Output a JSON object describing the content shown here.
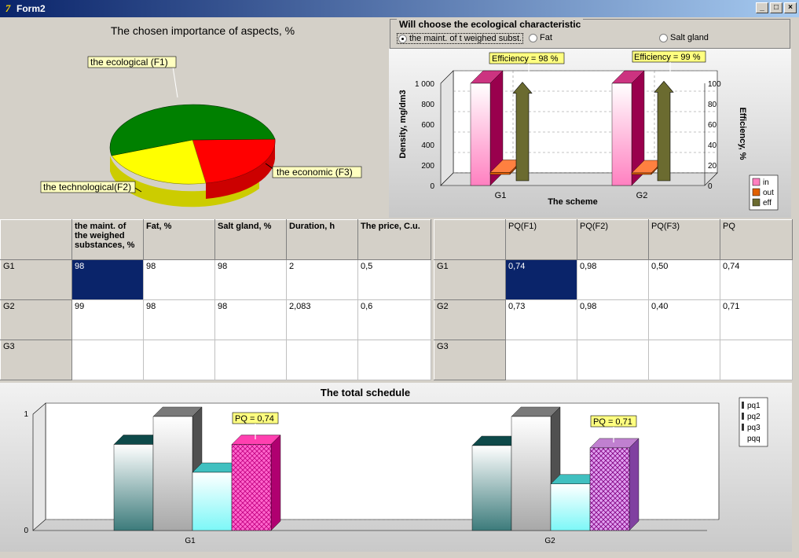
{
  "window": {
    "title": "Form2",
    "icon": "delphi-app-icon",
    "minimize": "_",
    "maximize": "□",
    "close": "×"
  },
  "pie_chart": {
    "title": "The chosen importance of aspects, %",
    "slices": [
      {
        "label": "the ecological  (F1)",
        "value": 50,
        "color": "#008000"
      },
      {
        "label": "the economic  (F3)",
        "value": 25,
        "color": "#ff0000"
      },
      {
        "label": "the technological(F2)",
        "value": 25,
        "color": "#ffff00"
      }
    ]
  },
  "eco_group": {
    "title": "Will choose the ecological characteristic",
    "options": [
      {
        "label": "the maint. of t weighed subst.",
        "selected": true
      },
      {
        "label": "Fat",
        "selected": false
      },
      {
        "label": "Salt gland",
        "selected": false
      }
    ]
  },
  "scheme_chart": {
    "ylabel": "Density, mg/dm3",
    "y2label": "Efficiency, %",
    "xlabel": "The scheme",
    "yticks": [
      "1 000",
      "800",
      "600",
      "400",
      "200",
      "0"
    ],
    "y2ticks": [
      "100",
      "80",
      "60",
      "40",
      "20",
      "0"
    ],
    "categories": [
      "G1",
      "G2"
    ],
    "legend": [
      "in",
      "out",
      "eff"
    ],
    "annotations": [
      "Efficiency = 98 %",
      "Efficiency = 99 %"
    ]
  },
  "table_left": {
    "headers": [
      "the maint. of the weighed substances, %",
      "Fat, %",
      "Salt gland, %",
      "Duration, h",
      "The price, C.u."
    ],
    "rows": [
      {
        "label": "G1",
        "cells": [
          "98",
          "98",
          "98",
          "2",
          "0,5"
        ]
      },
      {
        "label": "G2",
        "cells": [
          "99",
          "98",
          "98",
          "2,083",
          "0,6"
        ]
      },
      {
        "label": "G3",
        "cells": [
          "",
          "",
          "",
          "",
          ""
        ]
      }
    ]
  },
  "table_right": {
    "headers": [
      "PQ(F1)",
      "PQ(F2)",
      "PQ(F3)",
      "PQ"
    ],
    "rows": [
      {
        "label": "G1",
        "cells": [
          "0,74",
          "0,98",
          "0,50",
          "0,74"
        ]
      },
      {
        "label": "G2",
        "cells": [
          "0,73",
          "0,98",
          "0,40",
          "0,71"
        ]
      },
      {
        "label": "G3",
        "cells": [
          "",
          "",
          "",
          ""
        ]
      }
    ]
  },
  "total_chart": {
    "title": "The total schedule",
    "yticks": [
      "1",
      "0"
    ],
    "categories": [
      "G1",
      "G2"
    ],
    "legend": [
      "pq1",
      "pq2",
      "pq3",
      "pqq"
    ],
    "annotations": [
      "PQ = 0,74",
      "PQ = 0,71"
    ]
  },
  "chart_data": [
    {
      "type": "pie",
      "title": "The chosen importance of aspects, %",
      "categories": [
        "the ecological  (F1)",
        "the economic  (F3)",
        "the technological(F2)"
      ],
      "values": [
        50,
        25,
        25
      ]
    },
    {
      "type": "bar",
      "xlabel": "The scheme",
      "ylabel": "Density, mg/dm3",
      "y2label": "Efficiency, %",
      "categories": [
        "G1",
        "G2"
      ],
      "ylim": [
        0,
        1000
      ],
      "y2lim": [
        0,
        100
      ],
      "series": [
        {
          "name": "in",
          "values": [
            1000,
            1000
          ]
        },
        {
          "name": "out",
          "values": [
            20,
            10
          ]
        },
        {
          "name": "eff",
          "axis": "right",
          "values": [
            98,
            99
          ]
        }
      ]
    },
    {
      "type": "bar",
      "title": "The total schedule",
      "categories": [
        "G1",
        "G2"
      ],
      "ylim": [
        0,
        1
      ],
      "series": [
        {
          "name": "pq1",
          "values": [
            0.74,
            0.73
          ]
        },
        {
          "name": "pq2",
          "values": [
            0.98,
            0.98
          ]
        },
        {
          "name": "pq3",
          "values": [
            0.5,
            0.4
          ]
        },
        {
          "name": "pqq",
          "values": [
            0.74,
            0.71
          ]
        }
      ]
    }
  ]
}
